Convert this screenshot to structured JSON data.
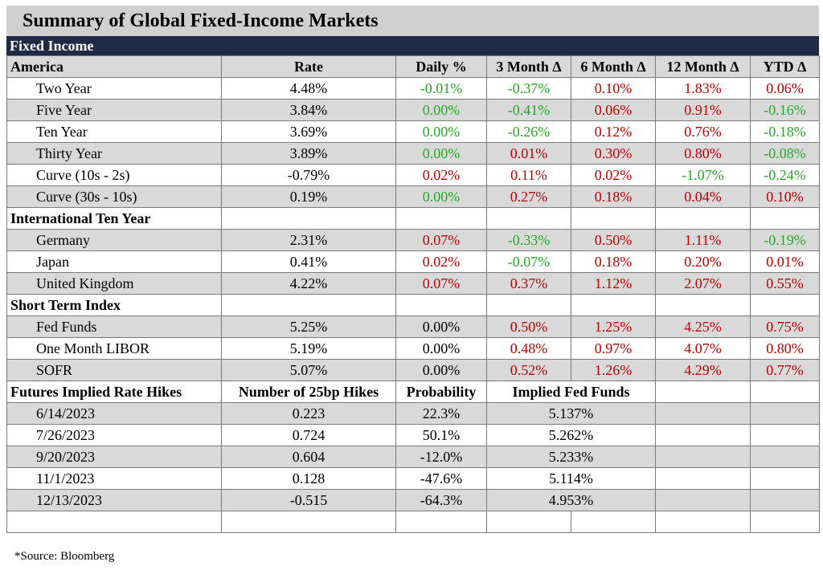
{
  "title": "Summary of Global Fixed-Income Markets",
  "section_label": "Fixed Income",
  "columns": [
    "America",
    "Rate",
    "Daily %",
    "3 Month Δ",
    "6 Month Δ",
    "12 Month Δ",
    "YTD Δ"
  ],
  "america_rows": [
    {
      "name": "Two Year",
      "rate": "4.48%",
      "daily": "-0.01%",
      "m3": "-0.37%",
      "m6": "0.10%",
      "m12": "1.83%",
      "ytd": "0.06%"
    },
    {
      "name": "Five Year",
      "rate": "3.84%",
      "daily": "0.00%",
      "m3": "-0.41%",
      "m6": "0.06%",
      "m12": "0.91%",
      "ytd": "-0.16%"
    },
    {
      "name": "Ten Year",
      "rate": "3.69%",
      "daily": "0.00%",
      "m3": "-0.26%",
      "m6": "0.12%",
      "m12": "0.76%",
      "ytd": "-0.18%"
    },
    {
      "name": "Thirty Year",
      "rate": "3.89%",
      "daily": "0.00%",
      "m3": "0.01%",
      "m6": "0.30%",
      "m12": "0.80%",
      "ytd": "-0.08%"
    },
    {
      "name": "Curve (10s - 2s)",
      "rate": "-0.79%",
      "daily": "0.02%",
      "m3": "0.11%",
      "m6": "0.02%",
      "m12": "-1.07%",
      "ytd": "-0.24%"
    },
    {
      "name": "Curve (30s - 10s)",
      "rate": "0.19%",
      "daily": "0.00%",
      "m3": "0.27%",
      "m6": "0.18%",
      "m12": "0.04%",
      "ytd": "0.10%"
    }
  ],
  "intl_label": "International Ten Year",
  "intl_rows": [
    {
      "name": "Germany",
      "rate": "2.31%",
      "daily": "0.07%",
      "m3": "-0.33%",
      "m6": "0.50%",
      "m12": "1.11%",
      "ytd": "-0.19%"
    },
    {
      "name": "Japan",
      "rate": "0.41%",
      "daily": "0.02%",
      "m3": "-0.07%",
      "m6": "0.18%",
      "m12": "0.20%",
      "ytd": "0.01%"
    },
    {
      "name": "United Kingdom",
      "rate": "4.22%",
      "daily": "0.07%",
      "m3": "0.37%",
      "m6": "1.12%",
      "m12": "2.07%",
      "ytd": "0.55%"
    }
  ],
  "short_label": "Short Term Index",
  "short_rows": [
    {
      "name": "Fed Funds",
      "rate": "5.25%",
      "daily": "0.00%",
      "m3": "0.50%",
      "m6": "1.25%",
      "m12": "4.25%",
      "ytd": "0.75%"
    },
    {
      "name": "One Month LIBOR",
      "rate": "5.19%",
      "daily": "0.00%",
      "m3": "0.48%",
      "m6": "0.97%",
      "m12": "4.07%",
      "ytd": "0.80%"
    },
    {
      "name": "SOFR",
      "rate": "5.07%",
      "daily": "0.00%",
      "m3": "0.52%",
      "m6": "1.26%",
      "m12": "4.29%",
      "ytd": "0.77%"
    }
  ],
  "futures_header": {
    "label": "Futures Implied Rate Hikes",
    "hikes": "Number of 25bp Hikes",
    "prob": "Probability",
    "implied": "Implied Fed Funds"
  },
  "futures_rows": [
    {
      "date": "6/14/2023",
      "hikes": "0.223",
      "prob": "22.3%",
      "implied": "5.137%"
    },
    {
      "date": "7/26/2023",
      "hikes": "0.724",
      "prob": "50.1%",
      "implied": "5.262%"
    },
    {
      "date": "9/20/2023",
      "hikes": "0.604",
      "prob": "-12.0%",
      "implied": "5.233%"
    },
    {
      "date": "11/1/2023",
      "hikes": "0.128",
      "prob": "-47.6%",
      "implied": "5.114%"
    },
    {
      "date": "12/13/2023",
      "hikes": "-0.515",
      "prob": "-64.3%",
      "implied": "4.953%"
    }
  ],
  "source": "*Source: Bloomberg",
  "colors": {
    "positive": "#c00000",
    "negative": "#22aa22",
    "header_bar": "#1f2a44",
    "grey_row": "#d9d9d9"
  }
}
